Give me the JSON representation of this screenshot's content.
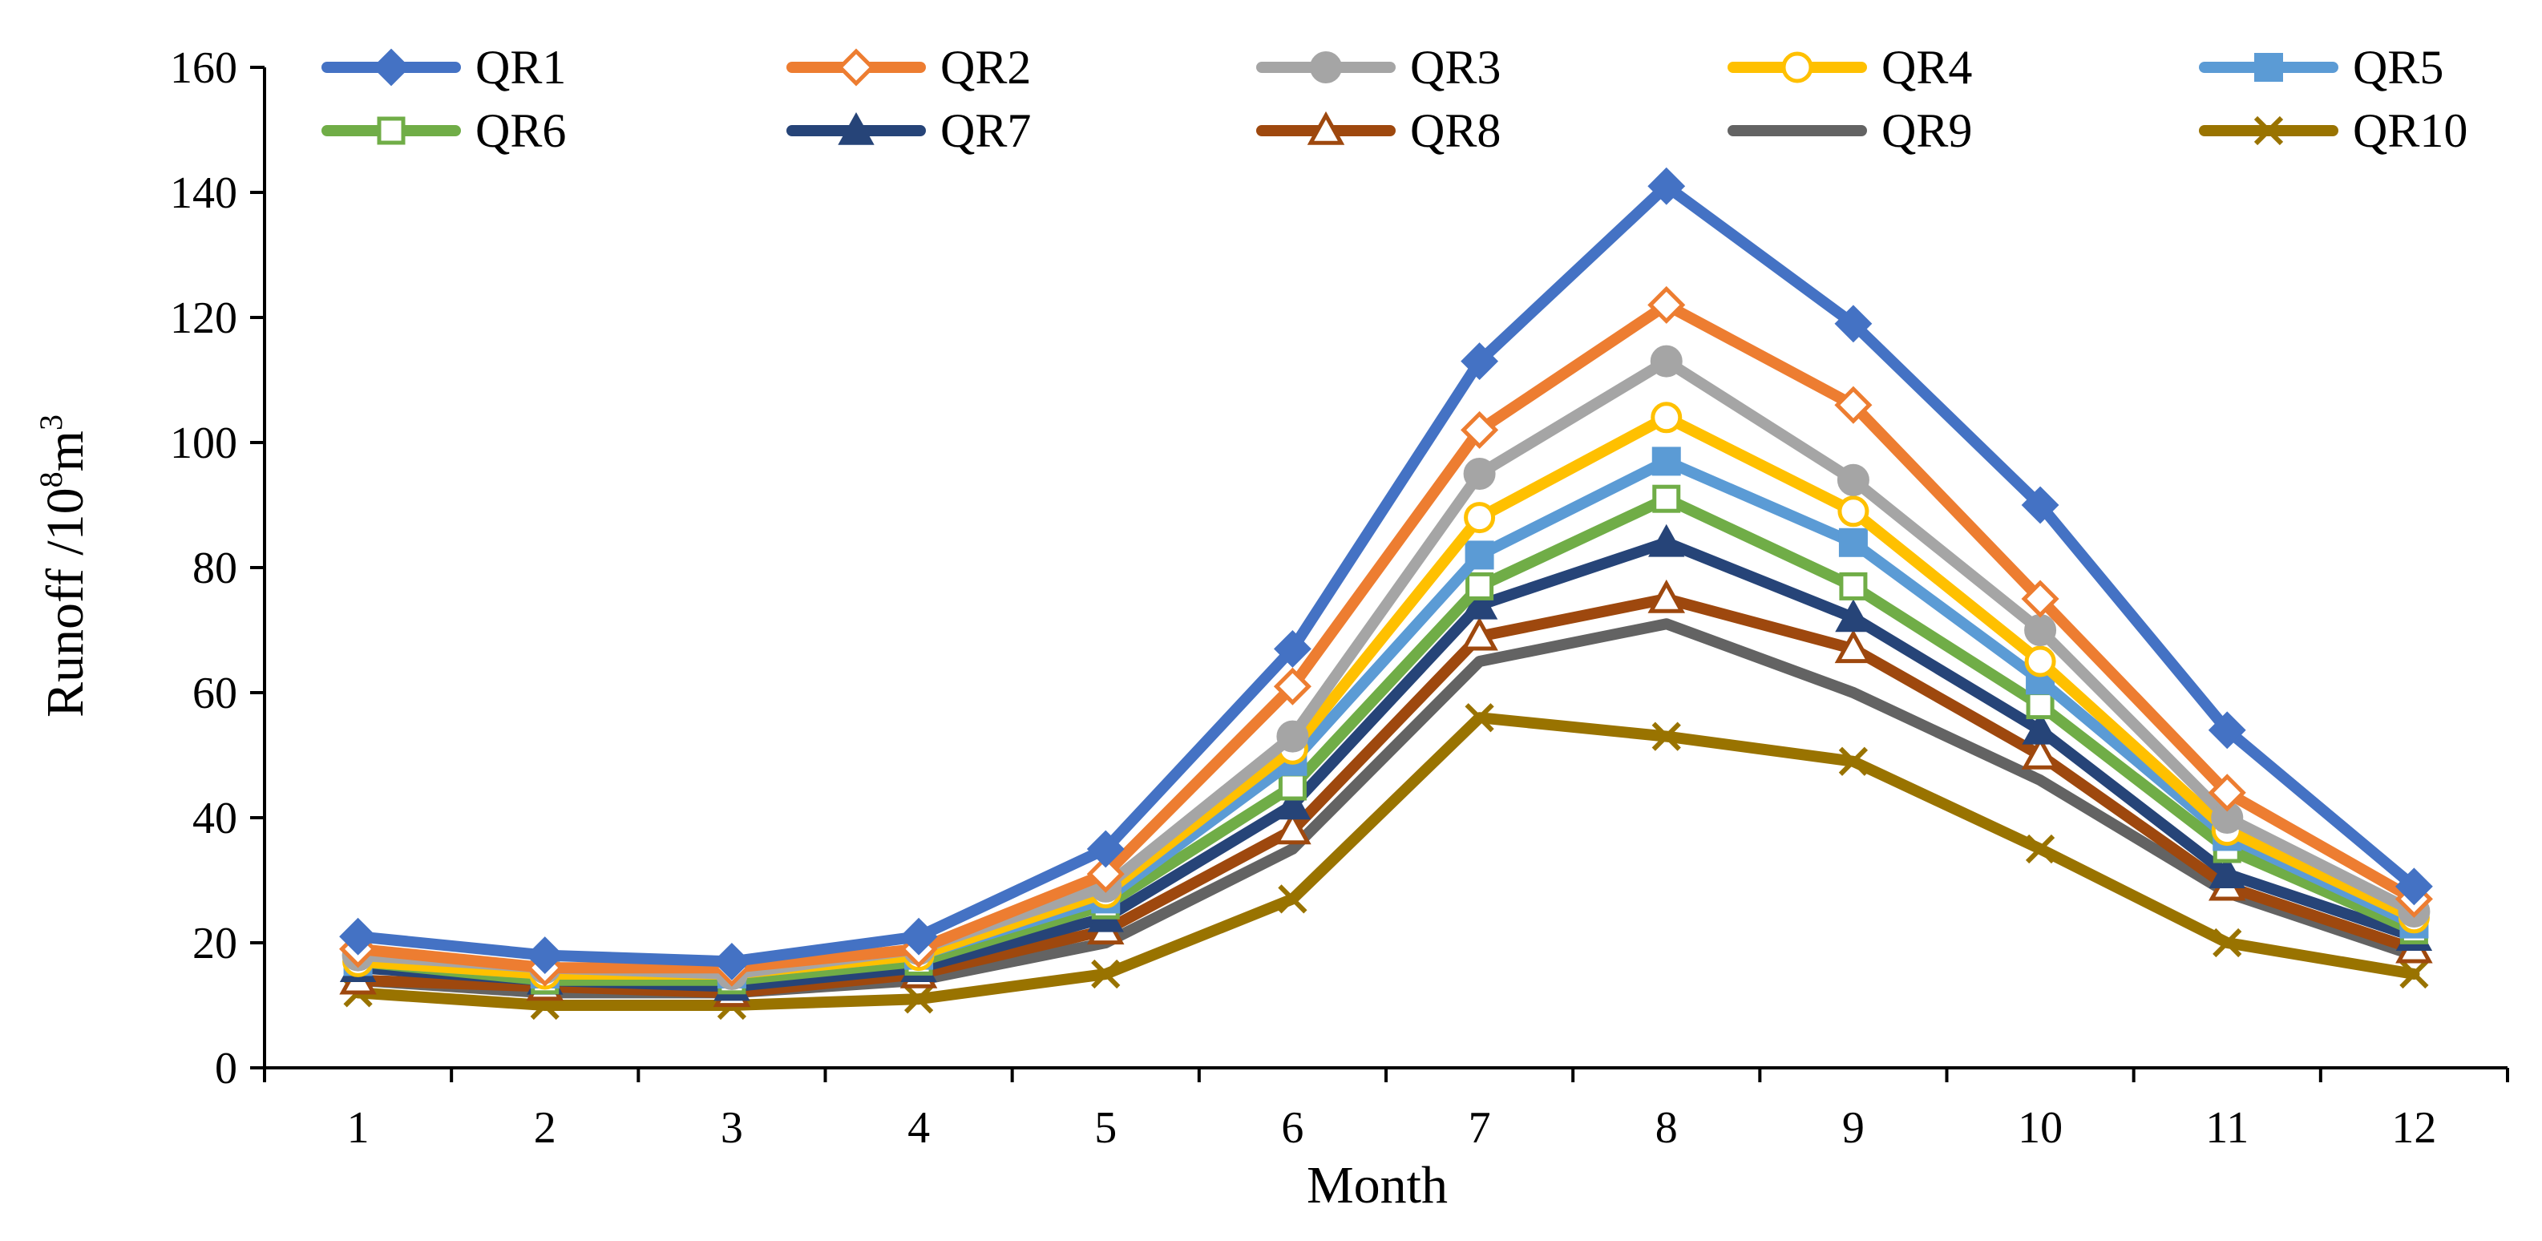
{
  "chart_data": {
    "type": "line",
    "title": "",
    "xlabel": "Month",
    "ylabel": {
      "prefix": "Runoff /10",
      "sup1": "8",
      "mid": "m",
      "sup2": "3"
    },
    "categories": [
      "1",
      "2",
      "3",
      "4",
      "5",
      "6",
      "7",
      "8",
      "9",
      "10",
      "11",
      "12"
    ],
    "ylim": [
      0,
      160
    ],
    "yticks": [
      "0",
      "20",
      "40",
      "60",
      "80",
      "100",
      "120",
      "140",
      "160"
    ],
    "grid": false,
    "legend_position": "top",
    "series": [
      {
        "name": "QR1",
        "color": "#4472C4",
        "marker": "diamond-filled",
        "values": [
          21,
          18,
          17,
          21,
          35,
          67,
          113,
          141,
          119,
          90,
          54,
          29
        ]
      },
      {
        "name": "QR2",
        "color": "#ED7D31",
        "marker": "diamond-open",
        "values": [
          19,
          16,
          16,
          19,
          31,
          61,
          102,
          122,
          106,
          75,
          44,
          27
        ]
      },
      {
        "name": "QR3",
        "color": "#A5A5A5",
        "marker": "circle-filled",
        "values": [
          18,
          16,
          15,
          19,
          29,
          53,
          95,
          113,
          94,
          70,
          40,
          25
        ]
      },
      {
        "name": "QR4",
        "color": "#FFC000",
        "marker": "circle-open",
        "values": [
          17,
          15,
          15,
          18,
          28,
          51,
          88,
          104,
          89,
          65,
          38,
          24
        ]
      },
      {
        "name": "QR5",
        "color": "#5B9BD5",
        "marker": "square-filled",
        "values": [
          17,
          15,
          15,
          18,
          27,
          49,
          82,
          97,
          84,
          62,
          37,
          23
        ]
      },
      {
        "name": "QR6",
        "color": "#70AD47",
        "marker": "square-open",
        "values": [
          17,
          14,
          14,
          17,
          26,
          45,
          77,
          91,
          77,
          58,
          35,
          22
        ]
      },
      {
        "name": "QR7",
        "color": "#264478",
        "marker": "triangle-filled",
        "values": [
          16,
          14,
          13,
          16,
          24,
          42,
          74,
          84,
          72,
          54,
          31,
          21
        ]
      },
      {
        "name": "QR8",
        "color": "#9E480E",
        "marker": "triangle-open",
        "values": [
          14,
          13,
          12,
          15,
          22,
          38,
          69,
          75,
          67,
          50,
          29,
          19
        ]
      },
      {
        "name": "QR9",
        "color": "#636363",
        "marker": "none",
        "values": [
          14,
          12,
          12,
          14,
          20,
          35,
          65,
          71,
          60,
          46,
          28,
          18
        ]
      },
      {
        "name": "QR10",
        "color": "#997300",
        "marker": "x",
        "values": [
          12,
          10,
          10,
          11,
          15,
          27,
          56,
          53,
          49,
          35,
          20,
          15
        ]
      }
    ]
  }
}
